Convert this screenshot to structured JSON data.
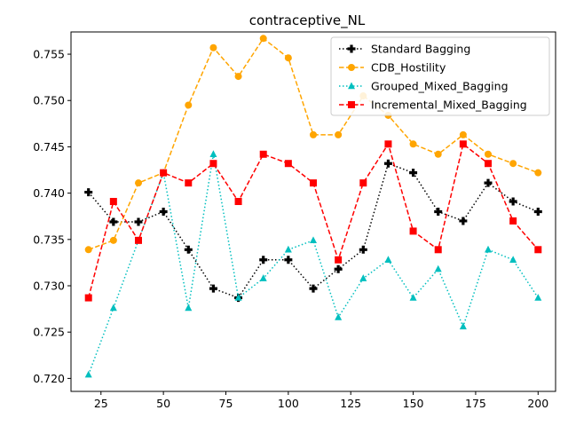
{
  "chart_data": {
    "type": "line",
    "title": "contraceptive_NL",
    "xlabel": "",
    "ylabel": "",
    "x": [
      20,
      30,
      40,
      50,
      60,
      70,
      80,
      90,
      100,
      110,
      120,
      130,
      140,
      150,
      160,
      170,
      180,
      190,
      200
    ],
    "xlim": [
      13,
      207
    ],
    "ylim": [
      0.7186,
      0.7574
    ],
    "xticks": [
      25,
      50,
      75,
      100,
      125,
      150,
      175,
      200
    ],
    "yticks": [
      0.72,
      0.725,
      0.73,
      0.735,
      0.74,
      0.745,
      0.75,
      0.755
    ],
    "grid": false,
    "legend_position": "top-right",
    "series": [
      {
        "name": "Standard Bagging",
        "color": "#000000",
        "line_style": "dotted",
        "marker": "plus",
        "values": [
          0.7401,
          0.7369,
          0.7369,
          0.738,
          0.7339,
          0.7297,
          0.7287,
          0.7328,
          0.7328,
          0.7297,
          0.7318,
          0.7339,
          0.7432,
          0.7422,
          0.738,
          0.737,
          0.7411,
          0.7391,
          0.738
        ]
      },
      {
        "name": "CDB_Hostility",
        "color": "#FFA500",
        "line_style": "dashed",
        "marker": "circle",
        "values": [
          0.7339,
          0.7349,
          0.7411,
          0.7422,
          0.7495,
          0.7557,
          0.7526,
          0.7567,
          0.7546,
          0.7463,
          0.7463,
          0.7505,
          0.7484,
          0.7453,
          0.7442,
          0.7463,
          0.7442,
          0.7432,
          0.7422
        ]
      },
      {
        "name": "Grouped_Mixed_Bagging",
        "color": "#00BFBF",
        "line_style": "dotted",
        "marker": "triangle",
        "values": [
          0.7204,
          0.7276,
          0.7349,
          0.7422,
          0.7276,
          0.7442,
          0.7287,
          0.7308,
          0.7339,
          0.7349,
          0.7266,
          0.7308,
          0.7328,
          0.7287,
          0.7318,
          0.7256,
          0.7339,
          0.7328,
          0.7287
        ]
      },
      {
        "name": "Incremental_Mixed_Bagging",
        "color": "#FF0000",
        "line_style": "dashed",
        "marker": "square",
        "values": [
          0.7287,
          0.7391,
          0.7349,
          0.7422,
          0.7411,
          0.7432,
          0.7391,
          0.7442,
          0.7432,
          0.7411,
          0.7328,
          0.7411,
          0.7453,
          0.7359,
          0.7339,
          0.7453,
          0.7432,
          0.737,
          0.7339
        ]
      }
    ]
  }
}
